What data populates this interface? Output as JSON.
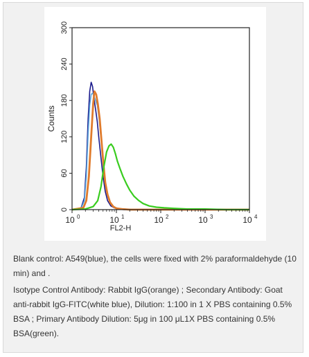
{
  "chart_data": {
    "type": "line",
    "x_scale": "log",
    "xlim": [
      1,
      10000
    ],
    "ylim": [
      0,
      300
    ],
    "xlabel": "FL2-H",
    "ylabel": "Counts",
    "xtick_labels": [
      "10",
      "10",
      "10",
      "10",
      "10"
    ],
    "xtick_exponents": [
      "0",
      "1",
      "2",
      "3",
      "4"
    ],
    "xtick_values": [
      1,
      10,
      100,
      1000,
      10000
    ],
    "yticks": [
      "0",
      "60",
      "120",
      "180",
      "240",
      "300"
    ],
    "ytick_values": [
      0,
      60,
      120,
      180,
      240,
      300
    ],
    "grid": false,
    "series": [
      {
        "color": "#1a1a8c",
        "x": [
          1.0,
          1.6,
          1.9,
          2.1,
          2.3,
          2.5,
          2.7,
          2.9,
          3.1,
          3.4,
          3.7,
          4.0,
          4.5,
          5.0,
          5.6,
          6.3,
          7.5,
          9.0,
          11,
          15,
          25,
          100,
          10000
        ],
        "y": [
          0,
          3,
          20,
          70,
          150,
          195,
          210,
          203,
          185,
          165,
          145,
          120,
          85,
          55,
          30,
          15,
          6,
          3,
          1,
          0,
          0,
          0,
          0
        ]
      },
      {
        "color": "#5ba3d9",
        "x": [
          1.0,
          1.6,
          1.9,
          2.1,
          2.3,
          2.5,
          2.7,
          2.9,
          3.1,
          3.4,
          3.7,
          4.0,
          4.5,
          5.0,
          5.6,
          6.3,
          7.5,
          9.0,
          11,
          15,
          25,
          100,
          10000
        ],
        "y": [
          0,
          2,
          15,
          55,
          125,
          172,
          190,
          192,
          188,
          180,
          172,
          155,
          118,
          80,
          45,
          22,
          9,
          4,
          2,
          1,
          0,
          0,
          0
        ]
      },
      {
        "color": "#e07b2c",
        "x": [
          1.0,
          1.8,
          2.1,
          2.4,
          2.7,
          3.0,
          3.2,
          3.5,
          3.8,
          4.2,
          4.6,
          5.1,
          5.6,
          6.3,
          7.2,
          8.5,
          10,
          13,
          20,
          100,
          10000
        ],
        "y": [
          0,
          3,
          15,
          55,
          120,
          175,
          195,
          190,
          175,
          150,
          115,
          75,
          45,
          25,
          12,
          5,
          2,
          1,
          0,
          0,
          0
        ]
      },
      {
        "color": "#39cc1f",
        "x": [
          1.0,
          2.0,
          3.0,
          3.8,
          4.5,
          5.2,
          6.0,
          6.8,
          7.6,
          8.5,
          9.5,
          10.5,
          12,
          14,
          17,
          20,
          25,
          32,
          40,
          55,
          80,
          120,
          200,
          400,
          1000,
          3000,
          10000
        ],
        "y": [
          0,
          1,
          5,
          15,
          38,
          70,
          95,
          105,
          108,
          103,
          92,
          80,
          68,
          55,
          42,
          32,
          22,
          15,
          10,
          6,
          4,
          3,
          2,
          1,
          1,
          0,
          0
        ]
      }
    ]
  },
  "caption": {
    "paragraph_1": "Blank control: A549(blue), the cells were fixed with 2% paraformaldehyde (10 min) and .",
    "paragraph_2": "Isotype Control Antibody: Rabbit IgG(orange) ; Secondary Antibody: Goat anti-rabbit IgG-FITC(white blue), Dilution: 1:100 in 1 X PBS containing 0.5% BSA ; Primary Antibody Dilution: 5μg in 100 μL1X PBS containing 0.5% BSA(green)."
  }
}
